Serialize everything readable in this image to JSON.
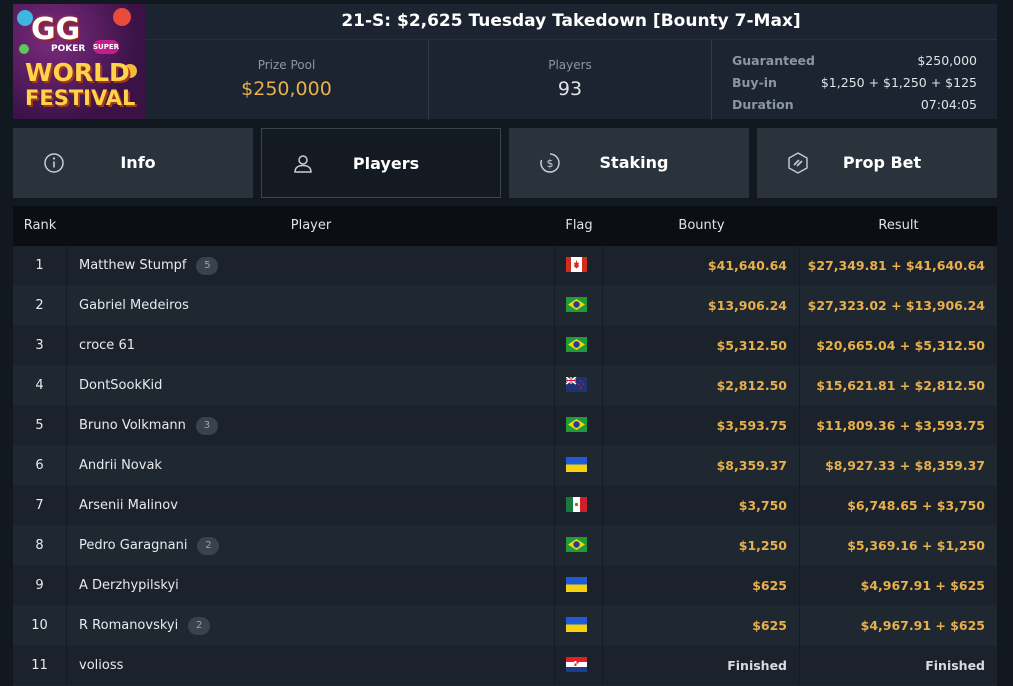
{
  "logo": {
    "line1": "GG",
    "line2": "POKER",
    "line3": "SUPER",
    "line4": "WORLD",
    "line5": "FESTIVAL"
  },
  "title": "21-S: $2,625 Tuesday Takedown [Bounty 7-Max]",
  "stats": {
    "prize_label": "Prize Pool",
    "prize_value": "$250,000",
    "players_label": "Players",
    "players_value": "93"
  },
  "details": [
    {
      "k": "Guaranteed",
      "v": "$250,000"
    },
    {
      "k": "Buy-in",
      "v": "$1,250 + $1,250 + $125"
    },
    {
      "k": "Duration",
      "v": "07:04:05"
    }
  ],
  "tabs": [
    {
      "label": "Info",
      "icon": "info-icon",
      "active": false
    },
    {
      "label": "Players",
      "icon": "user-icon",
      "active": true
    },
    {
      "label": "Staking",
      "icon": "dollar-coin-icon",
      "active": false
    },
    {
      "label": "Prop Bet",
      "icon": "lightning-icon",
      "active": false
    }
  ],
  "table": {
    "headers": {
      "rank": "Rank",
      "player": "Player",
      "flag": "Flag",
      "bounty": "Bounty",
      "result": "Result"
    },
    "rows": [
      {
        "rank": "1",
        "player": "Matthew Stumpf",
        "badge": "5",
        "flag": "canada",
        "bounty": "$41,640.64",
        "result": "$27,349.81 + $41,640.64"
      },
      {
        "rank": "2",
        "player": "Gabriel Medeiros",
        "badge": "",
        "flag": "brazil",
        "bounty": "$13,906.24",
        "result": "$27,323.02 + $13,906.24"
      },
      {
        "rank": "3",
        "player": "croce 61",
        "badge": "",
        "flag": "brazil",
        "bounty": "$5,312.50",
        "result": "$20,665.04 + $5,312.50"
      },
      {
        "rank": "4",
        "player": "DontSookKid",
        "badge": "",
        "flag": "new-zealand",
        "bounty": "$2,812.50",
        "result": "$15,621.81 + $2,812.50"
      },
      {
        "rank": "5",
        "player": "Bruno Volkmann",
        "badge": "3",
        "flag": "brazil",
        "bounty": "$3,593.75",
        "result": "$11,809.36 + $3,593.75"
      },
      {
        "rank": "6",
        "player": "Andrii Novak",
        "badge": "",
        "flag": "ukraine",
        "bounty": "$8,359.37",
        "result": "$8,927.33 + $8,359.37"
      },
      {
        "rank": "7",
        "player": "Arsenii Malinov",
        "badge": "",
        "flag": "mexico",
        "bounty": "$3,750",
        "result": "$6,748.65 + $3,750"
      },
      {
        "rank": "8",
        "player": "Pedro Garagnani",
        "badge": "2",
        "flag": "brazil",
        "bounty": "$1,250",
        "result": "$5,369.16 + $1,250"
      },
      {
        "rank": "9",
        "player": "A Derzhypilskyi",
        "badge": "",
        "flag": "ukraine",
        "bounty": "$625",
        "result": "$4,967.91 + $625"
      },
      {
        "rank": "10",
        "player": "R Romanovskyi",
        "badge": "2",
        "flag": "ukraine",
        "bounty": "$625",
        "result": "$4,967.91 + $625"
      },
      {
        "rank": "11",
        "player": "volioss",
        "badge": "",
        "flag": "croatia",
        "bounty": "Finished",
        "result": "Finished"
      }
    ]
  }
}
